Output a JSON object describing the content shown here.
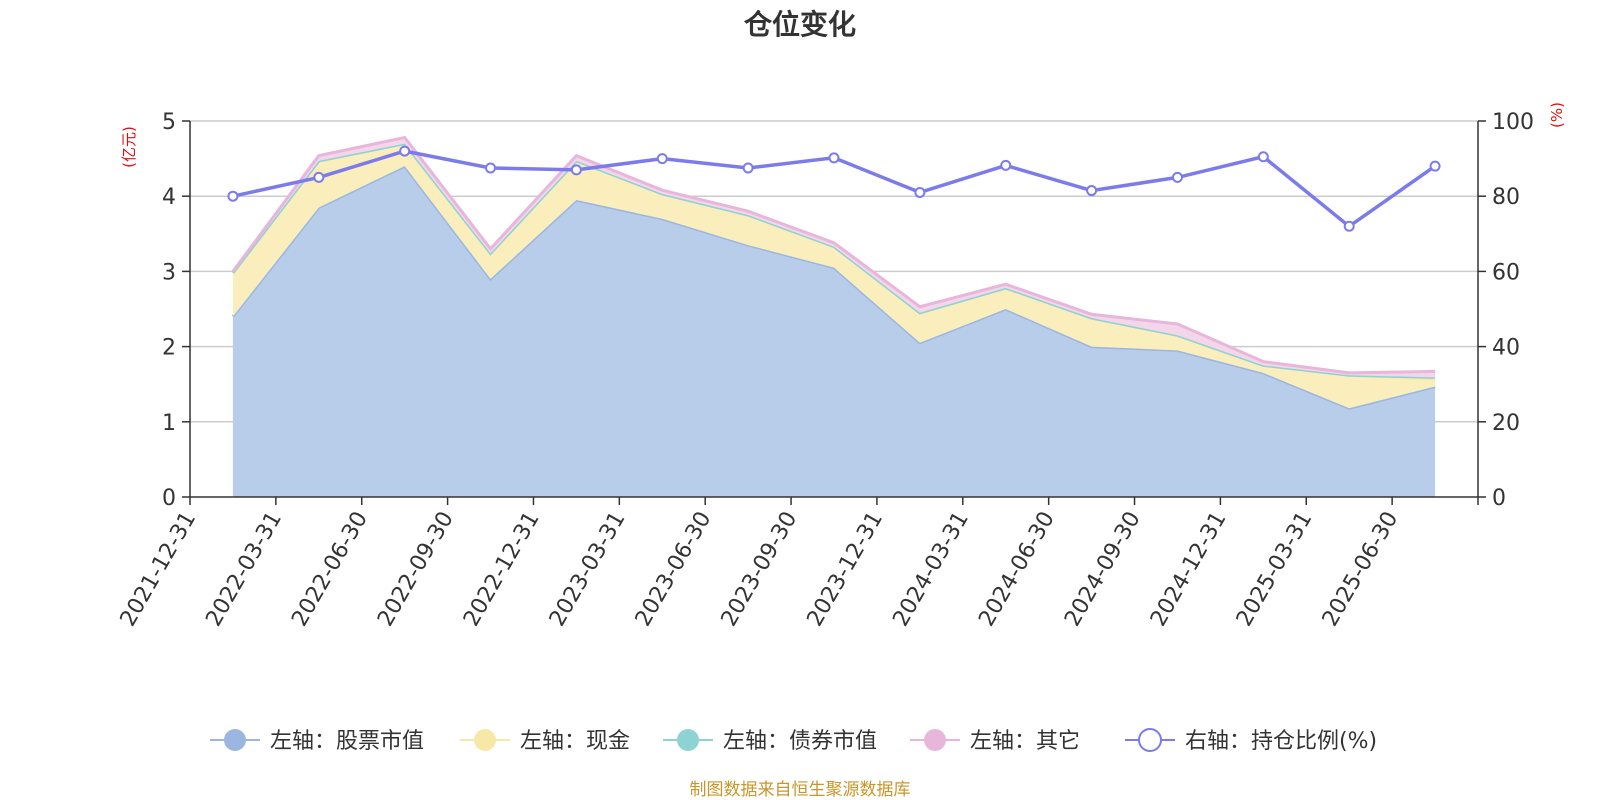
{
  "chart_data": {
    "type": "area",
    "title": "仓位变化",
    "categories": [
      "2021-12-31",
      "2022-03-31",
      "2022-06-30",
      "2022-09-30",
      "2022-12-31",
      "2023-03-31",
      "2023-06-30",
      "2023-09-30",
      "2023-12-31",
      "2024-03-31",
      "2024-06-30",
      "2024-09-30",
      "2024-12-31",
      "2025-03-31",
      "2025-06-30"
    ],
    "left_axis": {
      "unit_label": "(亿元)",
      "ylim": [
        0,
        5
      ],
      "ticks": [
        "0",
        "1",
        "2",
        "3",
        "4",
        "5"
      ]
    },
    "right_axis": {
      "unit_label": "(%)",
      "ylim": [
        0,
        100
      ],
      "ticks": [
        "0",
        "20",
        "40",
        "60",
        "80",
        "100"
      ]
    },
    "stacked": true,
    "grid": true,
    "legend_position": "bottom",
    "series": [
      {
        "name": "左轴：股票市值",
        "axis": "left",
        "type": "area",
        "color": "#9bb6e0",
        "fill": "#b8cdea",
        "values": [
          2.4,
          3.85,
          4.4,
          2.9,
          3.95,
          3.7,
          3.35,
          3.05,
          2.05,
          2.5,
          2.0,
          1.95,
          1.65,
          1.18,
          1.47
        ]
      },
      {
        "name": "左轴：现金",
        "axis": "left",
        "type": "area",
        "color": "#f8e8a8",
        "fill": "#fbeebd",
        "values": [
          0.58,
          0.62,
          0.3,
          0.34,
          0.52,
          0.33,
          0.4,
          0.28,
          0.4,
          0.28,
          0.38,
          0.2,
          0.1,
          0.44,
          0.1
        ]
      },
      {
        "name": "左轴：债券市值",
        "axis": "left",
        "type": "area",
        "color": "#8dd3d3",
        "fill": "#bfe6e3",
        "values": [
          0.0,
          0.0,
          0.0,
          0.0,
          0.0,
          0.0,
          0.0,
          0.0,
          0.0,
          0.0,
          0.0,
          0.0,
          0.0,
          0.0,
          0.02
        ]
      },
      {
        "name": "左轴：其它",
        "axis": "left",
        "type": "area",
        "color": "#e8b6da",
        "fill": "#f3d6ea",
        "values": [
          0.02,
          0.07,
          0.08,
          0.06,
          0.07,
          0.05,
          0.05,
          0.05,
          0.08,
          0.05,
          0.05,
          0.15,
          0.05,
          0.03,
          0.08
        ]
      },
      {
        "name": "右轴：持仓比例(%)",
        "axis": "right",
        "type": "line",
        "color": "#7b7beb",
        "values": [
          80,
          85,
          92,
          87.5,
          87,
          90,
          87.5,
          90.2,
          81,
          88.2,
          81.5,
          85,
          90.5,
          72,
          88
        ]
      }
    ]
  },
  "source_text": "制图数据来自恒生聚源数据库"
}
